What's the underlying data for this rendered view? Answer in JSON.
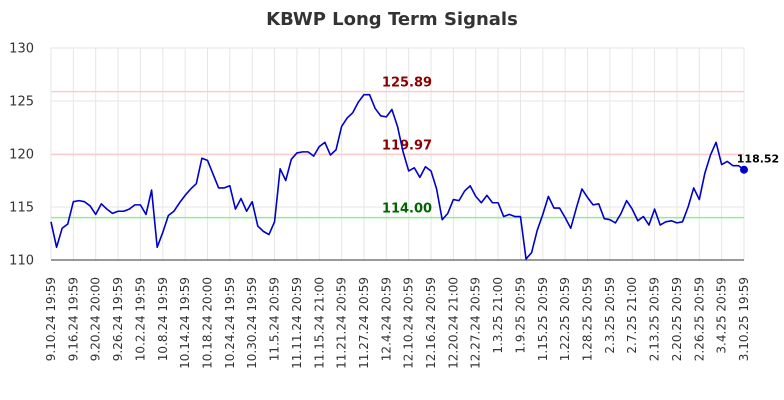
{
  "chart_data": {
    "type": "line",
    "title": "KBWP Long Term Signals",
    "xlabel": "",
    "ylabel": "",
    "ylim": [
      110,
      130
    ],
    "yticks": [
      "110",
      "115",
      "120",
      "125",
      "130"
    ],
    "xticks": [
      "9.10.24 19:59",
      "9.16.24 19:59",
      "9.20.24 20:00",
      "9.26.24 19:59",
      "10.2.24 19:59",
      "10.8.24 19:59",
      "10.14.24 19:59",
      "10.18.24 20:00",
      "10.24.24 19:59",
      "10.30.24 19:59",
      "11.5.24 20:59",
      "11.11.24 20:59",
      "11.15.24 21:00",
      "11.21.24 20:59",
      "11.27.24 20:59",
      "12.4.24 20:59",
      "12.10.24 20:59",
      "12.16.24 20:59",
      "12.20.24 21:00",
      "12.27.24 20:59",
      "1.3.25 21:00",
      "1.9.25 20:59",
      "1.15.25 20:59",
      "1.22.25 20:59",
      "1.28.25 20:59",
      "2.3.25 20:59",
      "2.7.25 21:00",
      "2.13.25 20:59",
      "2.20.25 20:59",
      "2.26.25 20:59",
      "3.4.25 20:59",
      "3.10.25 19:59"
    ],
    "grid": true,
    "levels": [
      {
        "value": 125.89,
        "label": "125.89",
        "line_color": "#ffcccc",
        "text_color": "#8b0000"
      },
      {
        "value": 119.97,
        "label": "119.97",
        "line_color": "#ffcccc",
        "text_color": "#8b0000"
      },
      {
        "value": 114.0,
        "label": "114.00",
        "line_color": "#90ee90",
        "text_color": "#006400"
      }
    ],
    "last_value_label": "118.52",
    "line_color": "#0000cc",
    "series": [
      {
        "values": [
          113.6,
          111.2,
          113.0,
          113.4,
          115.5,
          115.6,
          115.5,
          115.1,
          114.3,
          115.3,
          114.8,
          114.4,
          114.6,
          114.6,
          114.8,
          115.2,
          115.2,
          114.3,
          116.6,
          111.2,
          112.6,
          114.2,
          114.6,
          115.4,
          116.1,
          116.7,
          117.2,
          119.6,
          119.4,
          118.1,
          116.8,
          116.8,
          117.0,
          114.8,
          115.8,
          114.6,
          115.5,
          113.2,
          112.7,
          112.4,
          113.6,
          118.6,
          117.5,
          119.5,
          120.1,
          120.2,
          120.2,
          119.8,
          120.7,
          121.1,
          119.9,
          120.4,
          122.6,
          123.4,
          123.9,
          124.9,
          125.6,
          125.6,
          124.3,
          123.6,
          123.5,
          124.2,
          122.6,
          120.2,
          118.4,
          118.7,
          117.8,
          118.8,
          118.4,
          116.7,
          113.8,
          114.4,
          115.7,
          115.6,
          116.5,
          117.0,
          116.0,
          115.4,
          116.1,
          115.4,
          115.4,
          114.1,
          114.3,
          114.1,
          114.1,
          110.1,
          110.7,
          112.8,
          114.3,
          116.0,
          114.9,
          114.9,
          114.0,
          113.0,
          114.9,
          116.7,
          115.9,
          115.2,
          115.3,
          113.9,
          113.8,
          113.5,
          114.4,
          115.6,
          114.8,
          113.7,
          114.1,
          113.3,
          114.8,
          113.3,
          113.6,
          113.7,
          113.5,
          113.6,
          115.0,
          116.8,
          115.7,
          118.2,
          119.9,
          121.1,
          119.0,
          119.3,
          118.9,
          118.9,
          118.52
        ]
      }
    ]
  }
}
